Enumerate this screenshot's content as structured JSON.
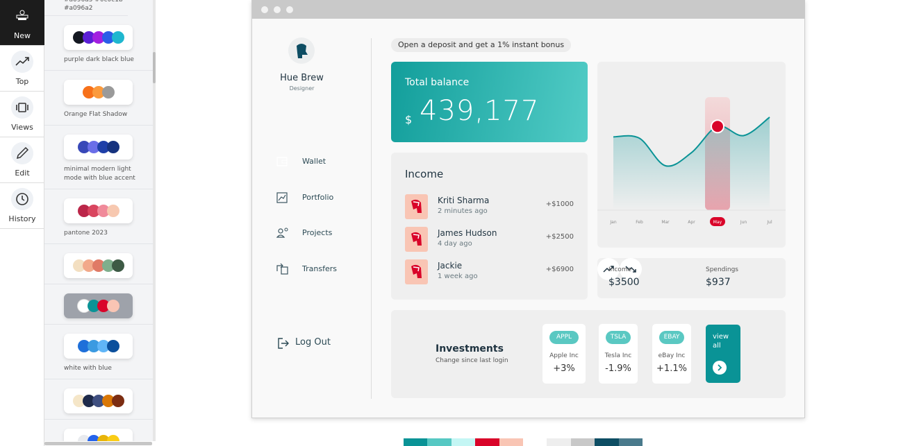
{
  "nav": [
    "New",
    "Top",
    "Views",
    "Edit",
    "History"
  ],
  "palettes": {
    "partial_text": "#a096a5 #0c0c1b #a096a2",
    "selected": 5,
    "items": [
      {
        "name": "purple dark black blue",
        "colors": [
          "#141821",
          "#5b1fd6",
          "#a21fe0",
          "#2a5de8",
          "#1fb7cf"
        ]
      },
      {
        "name": "Orange Flat Shadow",
        "colors": [
          "#f7711a",
          "#fb9a3c",
          "#9a9a9a"
        ]
      },
      {
        "name": "minimal modern light mode with blue accent",
        "colors": [
          "#3848b8",
          "#6a6ee8",
          "#1f3fa8",
          "#16327e"
        ]
      },
      {
        "name": "pantone 2023",
        "colors": [
          "#bb2649",
          "#d9455f",
          "#f08a9a",
          "#f7c8b0"
        ]
      },
      {
        "colors": [
          "#f3dfc1",
          "#f2a98a",
          "#e07a66",
          "#7fae8c",
          "#3d5a45"
        ]
      },
      {
        "colors": [
          "#ffffff",
          "#0a9396",
          "#d90429",
          "#f9c5b4"
        ]
      },
      {
        "name": "white with blue",
        "colors": [
          "#1e6fd9",
          "#3b9ae1",
          "#60b5f7",
          "#0b4f9c"
        ]
      },
      {
        "colors": [
          "#f5e6c8",
          "#1e2a4a",
          "#3f4f80",
          "#d97706",
          "#7c2d12"
        ]
      },
      {
        "colors": [
          "#e8eaee",
          "#2563eb",
          "#e8b408",
          "#facc15"
        ]
      }
    ]
  },
  "app": {
    "profile": {
      "name": "Hue Brew",
      "role": "Designer"
    },
    "menu": [
      "Wallet",
      "Portfolio",
      "Projects",
      "Transfers"
    ],
    "active_menu": 0,
    "logout": "Log Out",
    "promo": "Open a deposit and get a 1% instant bonus",
    "balance": {
      "label": "Total balance",
      "currency": "$",
      "amount": "439,177"
    },
    "income": {
      "title": "Income",
      "entries": [
        {
          "name": "Kriti Sharma",
          "time": "2 minutes ago",
          "amount": "+$1000"
        },
        {
          "name": "James Hudson",
          "time": "4 day ago",
          "amount": "+$2500"
        },
        {
          "name": "Jackie",
          "time": "1 week ago",
          "amount": "+$6900"
        }
      ]
    },
    "chart": {
      "months": [
        "Jan",
        "Feb",
        "Mar",
        "Apr",
        "May",
        "Jun",
        "Jul"
      ],
      "values": [
        61,
        60,
        39,
        49,
        69,
        62,
        76
      ],
      "highlight": 4,
      "color": "#0a9396"
    },
    "summary": [
      {
        "label": "Income",
        "value": "$3500"
      },
      {
        "label": "Spendings",
        "value": "$937"
      }
    ],
    "investments": {
      "title": "Investments",
      "subtitle": "Change since last login",
      "stocks": [
        {
          "ticker": "APPL",
          "name": "Apple Inc",
          "change": "+3%"
        },
        {
          "ticker": "TSLA",
          "name": "Tesla Inc",
          "change": "-1.9%"
        },
        {
          "ticker": "EBAY",
          "name": "eBay Inc",
          "change": "+1.1%"
        }
      ],
      "view_all": "view all"
    }
  },
  "swatches": [
    "#0a9396",
    "#56c8c3",
    "#c4f6f4",
    "#d90429",
    "#f9c5b4",
    "#ffffff",
    "#eeeeee",
    "#c8c8c8",
    "#0d4d63",
    "#4a7a8c"
  ]
}
